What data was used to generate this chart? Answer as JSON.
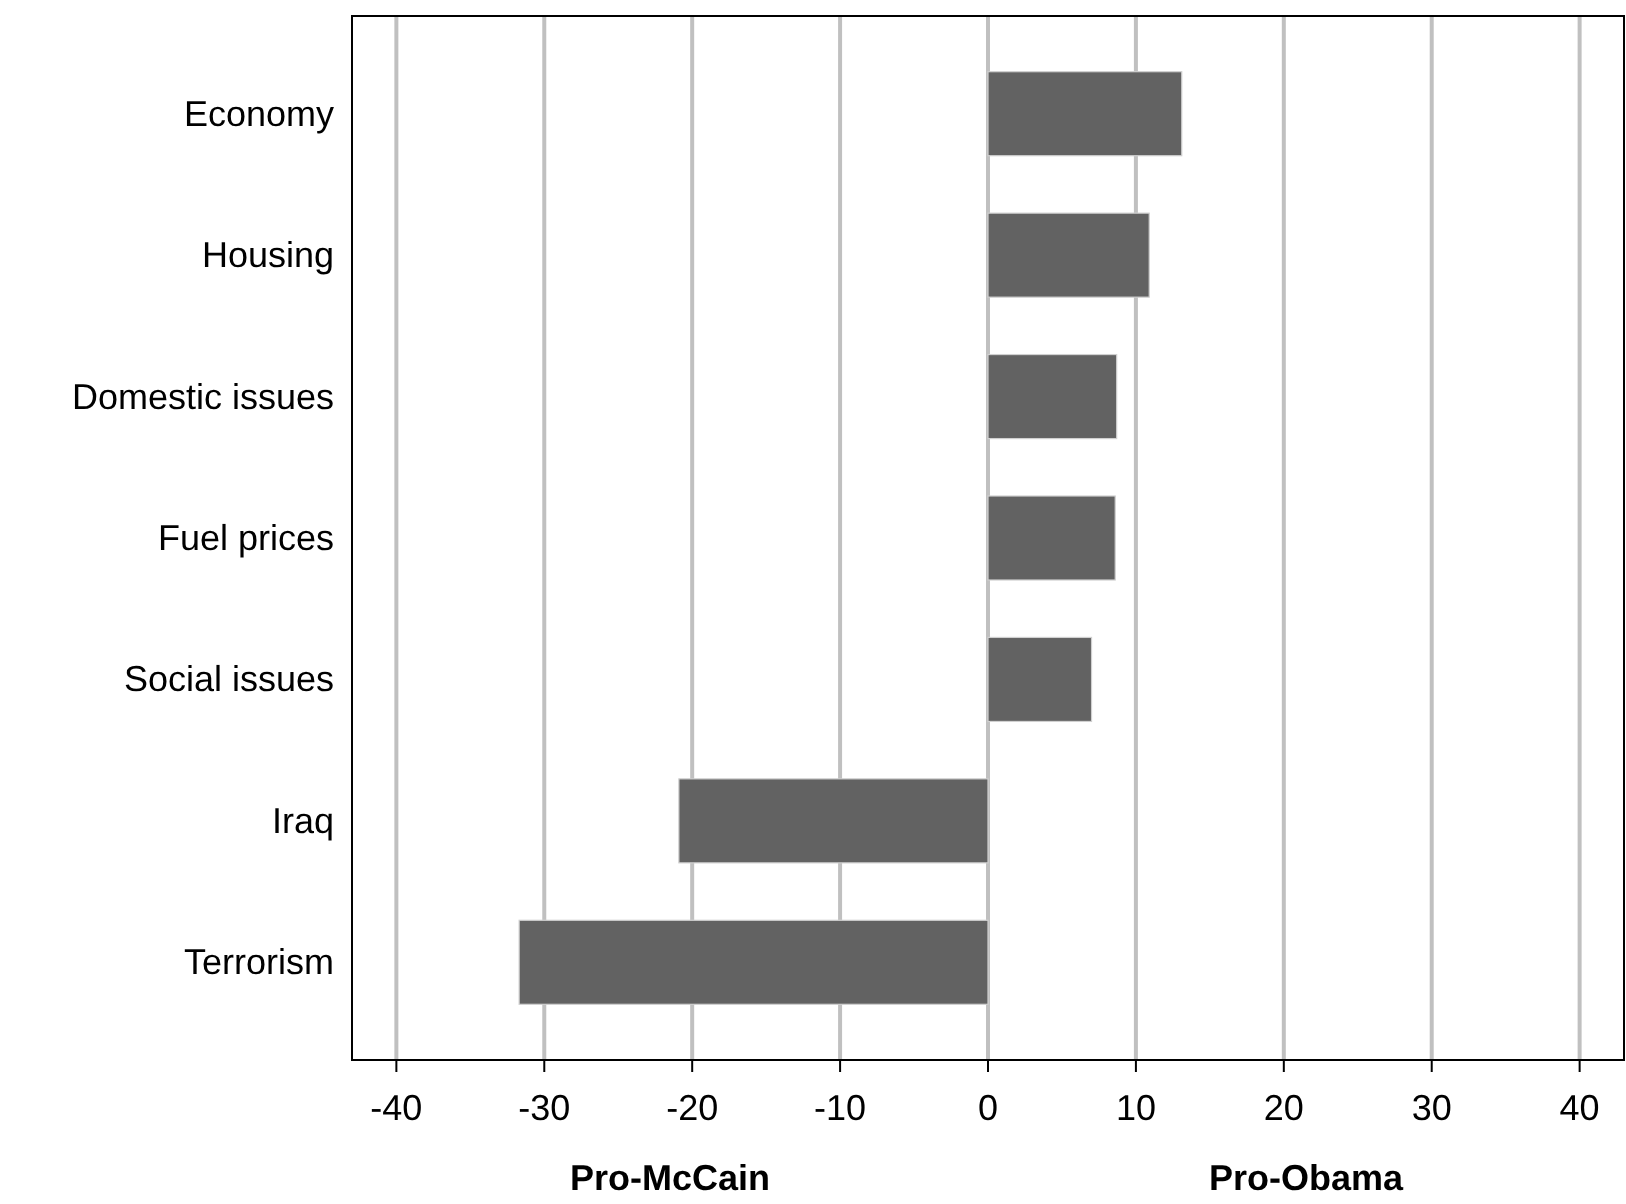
{
  "chart_data": {
    "type": "bar",
    "orientation": "horizontal",
    "categories": [
      "Economy",
      "Housing",
      "Domestic issues",
      "Fuel prices",
      "Social issues",
      "Iraq",
      "Terrorism"
    ],
    "values": [
      13.1,
      10.9,
      8.7,
      8.6,
      7.0,
      -20.9,
      -31.7
    ],
    "color": "#626262",
    "xlim": [
      -43,
      43
    ],
    "xticks": [
      -40,
      -30,
      -20,
      -10,
      0,
      10,
      20,
      30,
      40
    ],
    "grid": "x",
    "annotations": [
      "Pro-McCain",
      "Pro-Obama"
    ]
  }
}
